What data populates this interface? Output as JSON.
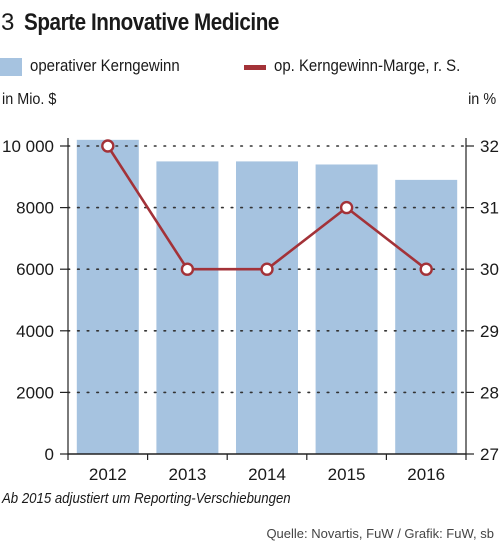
{
  "header": {
    "number": "3",
    "title": "Sparte Innovative Medicine"
  },
  "legend": {
    "bars_label": "operativer Kerngewinn",
    "line_label": "op. Kerngewinn-Marge, r. S."
  },
  "units": {
    "left": "in Mio. $",
    "right": "in %"
  },
  "note": "Ab 2015 adjustiert um Reporting-Verschiebungen",
  "source": "Quelle: Novartis, FuW / Grafik: FuW, sb",
  "colors": {
    "bar": "#a6c3e0",
    "line": "#a33238",
    "marker_fill": "#ffffff"
  },
  "chart_data": {
    "type": "bar",
    "categories": [
      "2012",
      "2013",
      "2014",
      "2015",
      "2016"
    ],
    "series": [
      {
        "name": "operativer Kerngewinn",
        "type": "bar",
        "axis": "left",
        "values": [
          10200,
          9500,
          9500,
          9400,
          8900
        ]
      },
      {
        "name": "op. Kerngewinn-Marge, r. S.",
        "type": "line",
        "axis": "right",
        "values": [
          32,
          30,
          30,
          31,
          30
        ]
      }
    ],
    "ylim_left": [
      0,
      10000
    ],
    "yticks_left": [
      "0",
      "2000",
      "4000",
      "6000",
      "8000",
      "10 000"
    ],
    "ylim_right": [
      27,
      32
    ],
    "yticks_right": [
      "27",
      "28",
      "29",
      "30",
      "31",
      "32"
    ],
    "ylabel_left": "in Mio. $",
    "ylabel_right": "in %",
    "grid": "dotted"
  }
}
